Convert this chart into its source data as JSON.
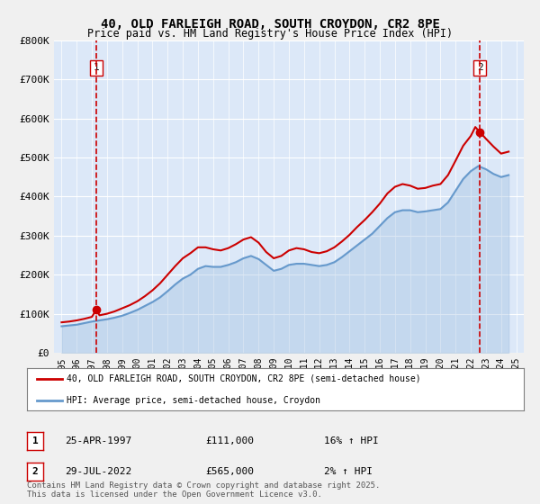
{
  "title": "40, OLD FARLEIGH ROAD, SOUTH CROYDON, CR2 8PE",
  "subtitle": "Price paid vs. HM Land Registry's House Price Index (HPI)",
  "ylabel": "",
  "xlabel": "",
  "background_color": "#f0f4ff",
  "plot_bg_color": "#dce8f8",
  "legend_line1": "40, OLD FARLEIGH ROAD, SOUTH CROYDON, CR2 8PE (semi-detached house)",
  "legend_line2": "HPI: Average price, semi-detached house, Croydon",
  "sale1_label": "1",
  "sale1_date": "25-APR-1997",
  "sale1_price": "£111,000",
  "sale1_hpi": "16% ↑ HPI",
  "sale2_label": "2",
  "sale2_date": "29-JUL-2022",
  "sale2_price": "£565,000",
  "sale2_hpi": "2% ↑ HPI",
  "copyright_text": "Contains HM Land Registry data © Crown copyright and database right 2025.\nThis data is licensed under the Open Government Licence v3.0.",
  "red_color": "#cc0000",
  "blue_color": "#6699cc",
  "sale1_year": 1997.3,
  "sale2_year": 2022.6,
  "hpi_years": [
    1995.0,
    1995.5,
    1996.0,
    1996.5,
    1997.0,
    1997.5,
    1998.0,
    1998.5,
    1999.0,
    1999.5,
    2000.0,
    2000.5,
    2001.0,
    2001.5,
    2002.0,
    2002.5,
    2003.0,
    2003.5,
    2004.0,
    2004.5,
    2005.0,
    2005.5,
    2006.0,
    2006.5,
    2007.0,
    2007.5,
    2008.0,
    2008.5,
    2009.0,
    2009.5,
    2010.0,
    2010.5,
    2011.0,
    2011.5,
    2012.0,
    2012.5,
    2013.0,
    2013.5,
    2014.0,
    2014.5,
    2015.0,
    2015.5,
    2016.0,
    2016.5,
    2017.0,
    2017.5,
    2018.0,
    2018.5,
    2019.0,
    2019.5,
    2020.0,
    2020.5,
    2021.0,
    2021.5,
    2022.0,
    2022.5,
    2023.0,
    2023.5,
    2024.0,
    2024.5
  ],
  "hpi_values": [
    68000,
    70000,
    72000,
    76000,
    80000,
    83000,
    86000,
    90000,
    95000,
    102000,
    110000,
    120000,
    130000,
    142000,
    158000,
    175000,
    190000,
    200000,
    215000,
    222000,
    220000,
    220000,
    225000,
    232000,
    242000,
    248000,
    240000,
    225000,
    210000,
    215000,
    225000,
    228000,
    228000,
    225000,
    222000,
    225000,
    232000,
    245000,
    260000,
    275000,
    290000,
    305000,
    325000,
    345000,
    360000,
    365000,
    365000,
    360000,
    362000,
    365000,
    368000,
    385000,
    415000,
    445000,
    465000,
    478000,
    470000,
    458000,
    450000,
    455000
  ],
  "red_years": [
    1995.0,
    1995.5,
    1996.0,
    1996.5,
    1997.0,
    1997.3,
    1997.5,
    1998.0,
    1998.5,
    1999.0,
    1999.5,
    2000.0,
    2000.5,
    2001.0,
    2001.5,
    2002.0,
    2002.5,
    2003.0,
    2003.5,
    2004.0,
    2004.5,
    2005.0,
    2005.5,
    2006.0,
    2006.5,
    2007.0,
    2007.5,
    2008.0,
    2008.5,
    2009.0,
    2009.5,
    2010.0,
    2010.5,
    2011.0,
    2011.5,
    2012.0,
    2012.5,
    2013.0,
    2013.5,
    2014.0,
    2014.5,
    2015.0,
    2015.5,
    2016.0,
    2016.5,
    2017.0,
    2017.5,
    2018.0,
    2018.5,
    2019.0,
    2019.5,
    2020.0,
    2020.5,
    2021.0,
    2021.5,
    2022.0,
    2022.3,
    2022.6,
    2023.0,
    2023.5,
    2024.0,
    2024.5
  ],
  "red_values": [
    78000,
    80000,
    83000,
    87000,
    92000,
    111000,
    96000,
    100000,
    106000,
    114000,
    122000,
    132000,
    145000,
    160000,
    178000,
    200000,
    222000,
    242000,
    255000,
    270000,
    270000,
    265000,
    262000,
    268000,
    278000,
    290000,
    296000,
    282000,
    258000,
    242000,
    248000,
    262000,
    268000,
    265000,
    258000,
    255000,
    260000,
    270000,
    285000,
    302000,
    322000,
    340000,
    360000,
    382000,
    408000,
    425000,
    432000,
    428000,
    420000,
    422000,
    428000,
    432000,
    455000,
    492000,
    530000,
    555000,
    578000,
    565000,
    548000,
    528000,
    510000,
    515000
  ],
  "ylim": [
    0,
    800000
  ],
  "xlim": [
    1994.5,
    2025.5
  ],
  "yticks": [
    0,
    100000,
    200000,
    300000,
    400000,
    500000,
    600000,
    700000,
    800000
  ],
  "ytick_labels": [
    "£0",
    "£100K",
    "£200K",
    "£300K",
    "£400K",
    "£500K",
    "£600K",
    "£700K",
    "£800K"
  ],
  "xticks": [
    1995,
    1996,
    1997,
    1998,
    1999,
    2000,
    2001,
    2002,
    2003,
    2004,
    2005,
    2006,
    2007,
    2008,
    2009,
    2010,
    2011,
    2012,
    2013,
    2014,
    2015,
    2016,
    2017,
    2018,
    2019,
    2020,
    2021,
    2022,
    2023,
    2024,
    2025
  ]
}
